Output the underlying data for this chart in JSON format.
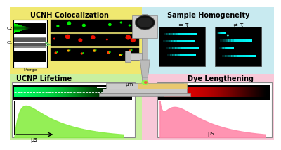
{
  "bg_top_left": "#f0e870",
  "bg_top_right": "#c8eaf0",
  "bg_bottom_left": "#c8f0a0",
  "bg_bottom_right": "#f8c8d8",
  "text_ucnh": "UCNH Colocalization",
  "text_sample": "Sample Homogeneity",
  "text_ucnp": "UCNP Lifetime",
  "text_dye": "Dye Lengthening",
  "text_c2": "C2",
  "text_c1": "C1",
  "text_merge": "Merge",
  "text_eq_tau": "= τ",
  "text_neq_tau": "≠ τ",
  "text_mus_left": "μs",
  "text_mum": "μm",
  "text_mus_right": "μs"
}
